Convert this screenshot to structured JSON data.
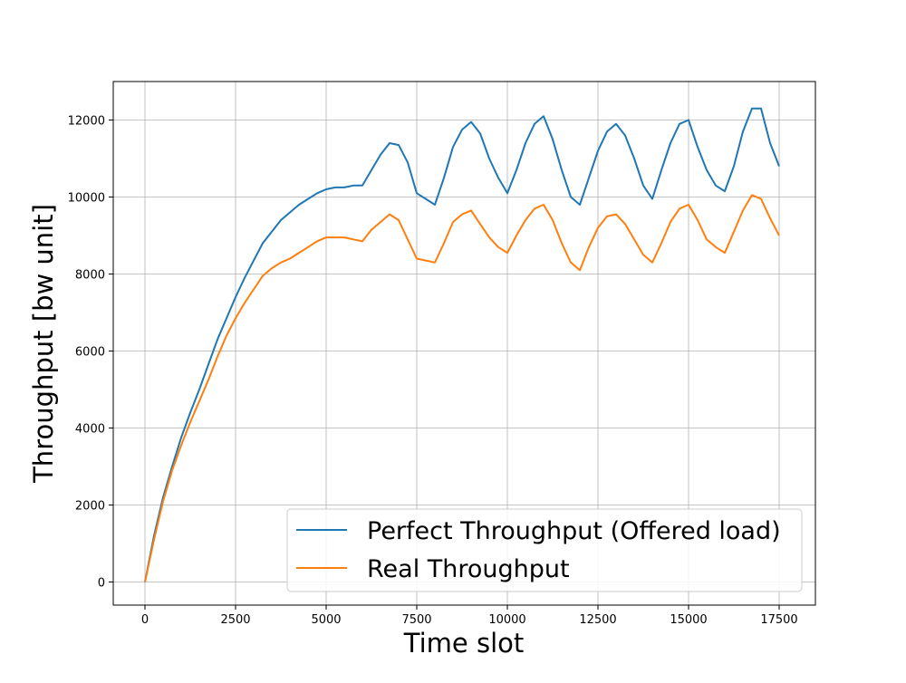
{
  "chart_data": {
    "type": "line",
    "title": "",
    "xlabel": "Time slot",
    "ylabel": "Throughput [bw unit]",
    "xlim": [
      -875,
      18500
    ],
    "ylim": [
      -600,
      13000
    ],
    "xticks": [
      0,
      2500,
      5000,
      7500,
      10000,
      12500,
      15000,
      17500
    ],
    "yticks": [
      0,
      2000,
      4000,
      6000,
      8000,
      10000,
      12000
    ],
    "grid": true,
    "legend_position": "lower right",
    "series": [
      {
        "name": "Perfect Throughput (Offered load)",
        "color": "#1f77b4",
        "x": [
          0,
          250,
          500,
          750,
          1000,
          1250,
          1500,
          1750,
          2000,
          2250,
          2500,
          2750,
          3000,
          3250,
          3500,
          3750,
          4000,
          4250,
          4500,
          4750,
          5000,
          5250,
          5500,
          5750,
          6000,
          6250,
          6500,
          6750,
          7000,
          7250,
          7500,
          7750,
          8000,
          8250,
          8500,
          8750,
          9000,
          9250,
          9500,
          9750,
          10000,
          10250,
          10500,
          10750,
          11000,
          11250,
          11500,
          11750,
          12000,
          12250,
          12500,
          12750,
          13000,
          13250,
          13500,
          13750,
          14000,
          14250,
          14500,
          14750,
          15000,
          15250,
          15500,
          15750,
          16000,
          16250,
          16500,
          16750,
          17000,
          17250,
          17500
        ],
        "y": [
          0,
          1200,
          2200,
          3000,
          3750,
          4400,
          5000,
          5650,
          6300,
          6850,
          7400,
          7900,
          8350,
          8800,
          9100,
          9400,
          9600,
          9800,
          9950,
          10100,
          10200,
          10250,
          10250,
          10300,
          10300,
          10700,
          11100,
          11400,
          11350,
          10900,
          10100,
          9950,
          9800,
          10500,
          11300,
          11750,
          11950,
          11650,
          11000,
          10500,
          10100,
          10700,
          11400,
          11900,
          12100,
          11500,
          10700,
          10000,
          9800,
          10500,
          11200,
          11700,
          11900,
          11600,
          11000,
          10300,
          9950,
          10700,
          11400,
          11900,
          12000,
          11300,
          10700,
          10300,
          10150,
          10800,
          11700,
          12300,
          12300,
          11400,
          10800
        ]
      },
      {
        "name": "Real Throughput",
        "color": "#ff7f0e",
        "x": [
          0,
          250,
          500,
          750,
          1000,
          1250,
          1500,
          1750,
          2000,
          2250,
          2500,
          2750,
          3000,
          3250,
          3500,
          3750,
          4000,
          4250,
          4500,
          4750,
          5000,
          5250,
          5500,
          5750,
          6000,
          6250,
          6500,
          6750,
          7000,
          7250,
          7500,
          7750,
          8000,
          8250,
          8500,
          8750,
          9000,
          9250,
          9500,
          9750,
          10000,
          10250,
          10500,
          10750,
          11000,
          11250,
          11500,
          11750,
          12000,
          12250,
          12500,
          12750,
          13000,
          13250,
          13500,
          13750,
          14000,
          14250,
          14500,
          14750,
          15000,
          15250,
          15500,
          15750,
          16000,
          16250,
          16500,
          16750,
          17000,
          17250,
          17500
        ],
        "y": [
          0,
          1100,
          2100,
          2900,
          3550,
          4150,
          4700,
          5250,
          5850,
          6400,
          6850,
          7250,
          7600,
          7950,
          8150,
          8300,
          8400,
          8550,
          8700,
          8850,
          8950,
          8950,
          8950,
          8900,
          8850,
          9150,
          9350,
          9550,
          9400,
          8900,
          8400,
          8350,
          8300,
          8800,
          9350,
          9550,
          9650,
          9300,
          8950,
          8700,
          8550,
          9000,
          9400,
          9700,
          9800,
          9400,
          8800,
          8300,
          8100,
          8700,
          9200,
          9500,
          9550,
          9300,
          8900,
          8500,
          8300,
          8800,
          9350,
          9700,
          9800,
          9400,
          8900,
          8700,
          8550,
          9100,
          9650,
          10050,
          9950,
          9450,
          9000
        ]
      }
    ]
  }
}
